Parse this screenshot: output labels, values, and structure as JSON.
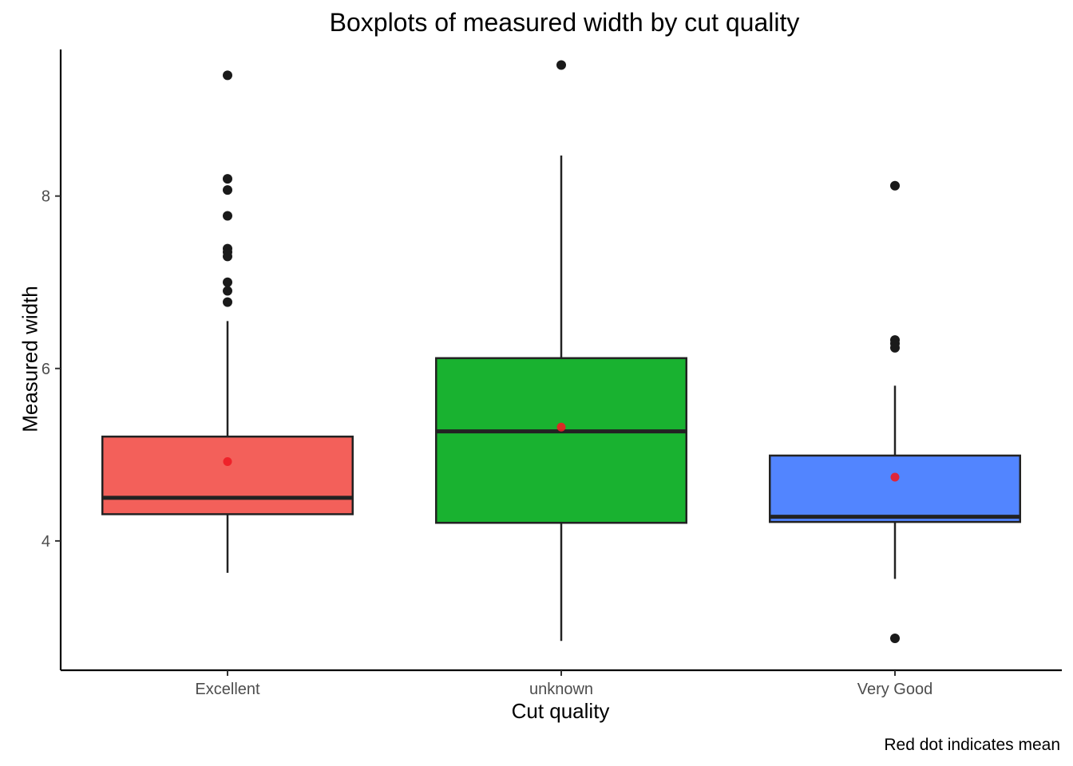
{
  "chart_data": {
    "type": "boxplot",
    "title": "Boxplots of measured width by cut quality",
    "xlabel": "Cut quality",
    "ylabel": "Measured width",
    "caption": "Red dot indicates mean",
    "ylim": [
      2.5,
      9.7
    ],
    "yticks": [
      4,
      6,
      8
    ],
    "grid": false,
    "legend": "none",
    "mean_color": "#ee1c25",
    "categories": [
      "Excellent",
      "unknown",
      "Very Good"
    ],
    "colors": [
      "#f3605a",
      "#19b230",
      "#5285ff"
    ],
    "boxes": [
      {
        "category": "Excellent",
        "whisker_low": 3.63,
        "q1": 4.31,
        "median": 4.5,
        "q3": 5.21,
        "whisker_high": 6.55,
        "mean": 4.92,
        "outliers": [
          9.4,
          8.2,
          8.07,
          7.77,
          7.39,
          7.35,
          7.3,
          7.0,
          6.9,
          6.77
        ]
      },
      {
        "category": "unknown",
        "whisker_low": 2.84,
        "q1": 4.21,
        "median": 5.27,
        "q3": 6.12,
        "whisker_high": 8.47,
        "mean": 5.32,
        "outliers": [
          9.52
        ]
      },
      {
        "category": "Very Good",
        "whisker_low": 3.56,
        "q1": 4.22,
        "median": 4.28,
        "q3": 4.99,
        "whisker_high": 5.8,
        "mean": 4.74,
        "outliers": [
          8.12,
          6.33,
          6.29,
          6.24,
          2.87
        ]
      }
    ]
  }
}
